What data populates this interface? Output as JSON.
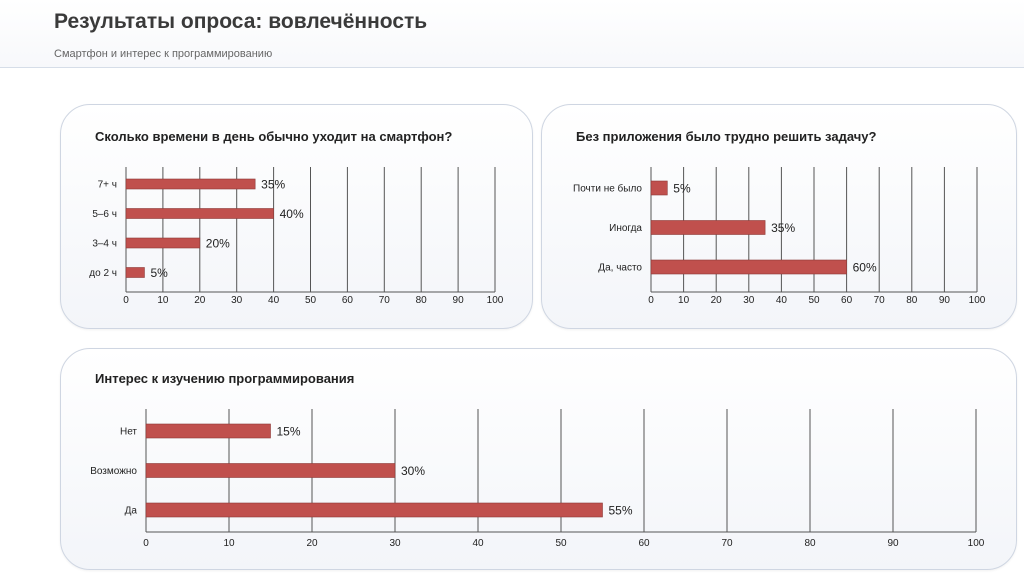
{
  "header": {
    "title": "Результаты опроса: вовлечённость",
    "subtitle": "Смартфон и интерес к программированию"
  },
  "colors": {
    "bar": "#c0504d",
    "grid": "#555555",
    "axis_text": "#222222"
  },
  "chart_data": [
    {
      "type": "bar",
      "orientation": "horizontal",
      "title": "Сколько времени в день обычно уходит на смартфон?",
      "categories": [
        "7+ ч",
        "5–6 ч",
        "3–4 ч",
        "до 2 ч"
      ],
      "values": [
        35,
        40,
        20,
        5
      ],
      "value_labels": [
        "35%",
        "40%",
        "20%",
        "5%"
      ],
      "xlim": [
        0,
        100
      ],
      "xticks": [
        0,
        10,
        20,
        30,
        40,
        50,
        60,
        70,
        80,
        90,
        100
      ],
      "grid": true
    },
    {
      "type": "bar",
      "orientation": "horizontal",
      "title": "Без приложения было трудно решить задачу?",
      "categories": [
        "Почти не было",
        "Иногда",
        "Да, часто"
      ],
      "values": [
        5,
        35,
        60
      ],
      "value_labels": [
        "5%",
        "35%",
        "60%"
      ],
      "xlim": [
        0,
        100
      ],
      "xticks": [
        0,
        10,
        20,
        30,
        40,
        50,
        60,
        70,
        80,
        90,
        100
      ],
      "grid": true
    },
    {
      "type": "bar",
      "orientation": "horizontal",
      "title": "Интерес к изучению программирования",
      "categories": [
        "Нет",
        "Возможно",
        "Да"
      ],
      "values": [
        15,
        30,
        55
      ],
      "value_labels": [
        "15%",
        "30%",
        "55%"
      ],
      "xlim": [
        0,
        100
      ],
      "xticks": [
        0,
        10,
        20,
        30,
        40,
        50,
        60,
        70,
        80,
        90,
        100
      ],
      "grid": true
    }
  ]
}
